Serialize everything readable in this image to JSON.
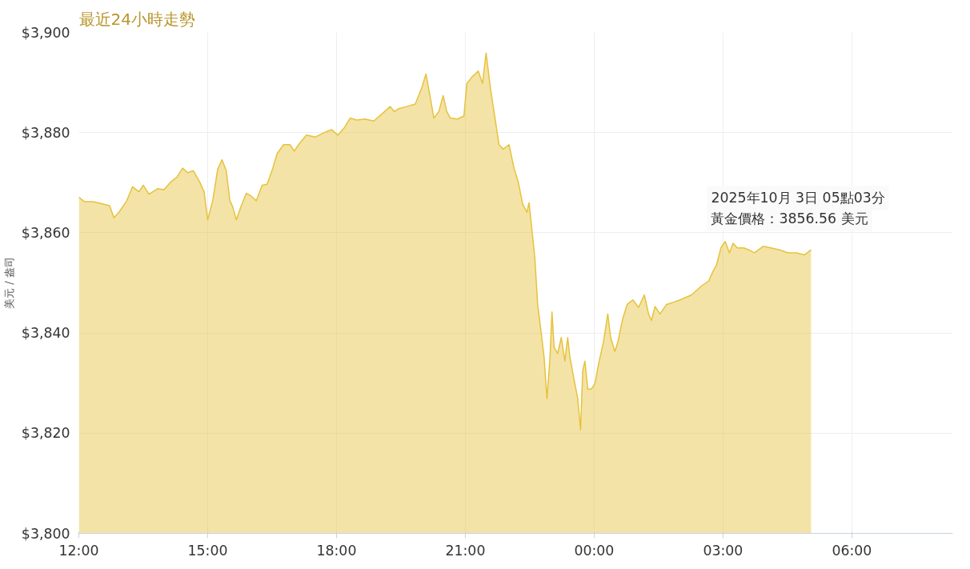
{
  "chart_data": {
    "type": "area",
    "title": "最近24小時走勢",
    "ylabel": "美元 / 盎司",
    "x": [
      "2025-10-02T12:00",
      "2025-10-02T12:08",
      "2025-10-02T12:20",
      "2025-10-02T12:32",
      "2025-10-02T12:43",
      "2025-10-02T12:49",
      "2025-10-02T12:56",
      "2025-10-02T13:07",
      "2025-10-02T13:15",
      "2025-10-02T13:24",
      "2025-10-02T13:30",
      "2025-10-02T13:38",
      "2025-10-02T13:50",
      "2025-10-02T13:59",
      "2025-10-02T14:08",
      "2025-10-02T14:17",
      "2025-10-02T14:25",
      "2025-10-02T14:32",
      "2025-10-02T14:40",
      "2025-10-02T14:49",
      "2025-10-02T14:55",
      "2025-10-02T15:00",
      "2025-10-02T15:07",
      "2025-10-02T15:14",
      "2025-10-02T15:20",
      "2025-10-02T15:26",
      "2025-10-02T15:31",
      "2025-10-02T15:35",
      "2025-10-02T15:40",
      "2025-10-02T15:47",
      "2025-10-02T15:54",
      "2025-10-02T16:01",
      "2025-10-02T16:08",
      "2025-10-02T16:16",
      "2025-10-02T16:23",
      "2025-10-02T16:31",
      "2025-10-02T16:37",
      "2025-10-02T16:46",
      "2025-10-02T16:55",
      "2025-10-02T17:01",
      "2025-10-02T17:07",
      "2025-10-02T17:18",
      "2025-10-02T17:30",
      "2025-10-02T17:41",
      "2025-10-02T17:53",
      "2025-10-02T18:02",
      "2025-10-02T18:11",
      "2025-10-02T18:19",
      "2025-10-02T18:28",
      "2025-10-02T18:40",
      "2025-10-02T18:52",
      "2025-10-02T19:04",
      "2025-10-02T19:15",
      "2025-10-02T19:21",
      "2025-10-02T19:27",
      "2025-10-02T19:38",
      "2025-10-02T19:50",
      "2025-10-02T19:59",
      "2025-10-02T20:05",
      "2025-10-02T20:11",
      "2025-10-02T20:16",
      "2025-10-02T20:23",
      "2025-10-02T20:29",
      "2025-10-02T20:34",
      "2025-10-02T20:39",
      "2025-10-02T20:49",
      "2025-10-02T20:58",
      "2025-10-02T21:02",
      "2025-10-02T21:10",
      "2025-10-02T21:18",
      "2025-10-02T21:24",
      "2025-10-02T21:29",
      "2025-10-02T21:35",
      "2025-10-02T21:41",
      "2025-10-02T21:47",
      "2025-10-02T21:53",
      "2025-10-02T22:01",
      "2025-10-02T22:08",
      "2025-10-02T22:14",
      "2025-10-02T22:20",
      "2025-10-02T22:26",
      "2025-10-02T22:29",
      "2025-10-02T22:37",
      "2025-10-02T22:41",
      "2025-10-02T22:46",
      "2025-10-02T22:50",
      "2025-10-02T22:54",
      "2025-10-02T22:58",
      "2025-10-02T23:01",
      "2025-10-02T23:04",
      "2025-10-02T23:09",
      "2025-10-02T23:14",
      "2025-10-02T23:19",
      "2025-10-02T23:23",
      "2025-10-02T23:26",
      "2025-10-02T23:32",
      "2025-10-02T23:37",
      "2025-10-02T23:41",
      "2025-10-02T23:44",
      "2025-10-02T23:47",
      "2025-10-02T23:51",
      "2025-10-02T23:56",
      "2025-10-03T00:01",
      "2025-10-03T00:07",
      "2025-10-03T00:13",
      "2025-10-03T00:19",
      "2025-10-03T00:23",
      "2025-10-03T00:29",
      "2025-10-03T00:33",
      "2025-10-03T00:40",
      "2025-10-03T00:46",
      "2025-10-03T00:54",
      "2025-10-03T01:02",
      "2025-10-03T01:10",
      "2025-10-03T01:16",
      "2025-10-03T01:20",
      "2025-10-03T01:25",
      "2025-10-03T01:32",
      "2025-10-03T01:41",
      "2025-10-03T01:50",
      "2025-10-03T02:00",
      "2025-10-03T02:16",
      "2025-10-03T02:30",
      "2025-10-03T02:40",
      "2025-10-03T02:46",
      "2025-10-03T02:51",
      "2025-10-03T02:57",
      "2025-10-03T03:03",
      "2025-10-03T03:09",
      "2025-10-03T03:14",
      "2025-10-03T03:20",
      "2025-10-03T03:29",
      "2025-10-03T03:36",
      "2025-10-03T03:44",
      "2025-10-03T03:56",
      "2025-10-03T04:07",
      "2025-10-03T04:19",
      "2025-10-03T04:31",
      "2025-10-03T04:43",
      "2025-10-03T04:54",
      "2025-10-03T05:03"
    ],
    "series": [
      {
        "color": "#e6c23c",
        "values": [
          3867.1,
          3866.2,
          3866.2,
          3865.8,
          3865.4,
          3863.0,
          3864.1,
          3866.4,
          3869.2,
          3868.2,
          3869.5,
          3867.7,
          3868.8,
          3868.6,
          3870.1,
          3871.1,
          3872.9,
          3872.0,
          3872.4,
          3870.1,
          3868.2,
          3862.6,
          3866.4,
          3872.7,
          3874.6,
          3872.4,
          3866.4,
          3865.2,
          3862.6,
          3865.4,
          3867.9,
          3867.3,
          3866.4,
          3869.5,
          3869.7,
          3872.9,
          3875.8,
          3877.6,
          3877.6,
          3876.3,
          3877.6,
          3879.5,
          3879.1,
          3879.9,
          3880.6,
          3879.5,
          3881.0,
          3882.9,
          3882.5,
          3882.7,
          3882.3,
          3883.8,
          3885.2,
          3884.2,
          3884.8,
          3885.2,
          3885.7,
          3888.9,
          3891.7,
          3887.0,
          3882.9,
          3884.2,
          3887.4,
          3884.2,
          3882.9,
          3882.7,
          3883.3,
          3889.8,
          3891.2,
          3892.3,
          3889.8,
          3895.9,
          3888.9,
          3883.3,
          3877.6,
          3876.7,
          3877.6,
          3872.9,
          3870.1,
          3865.8,
          3864.1,
          3866.0,
          3855.1,
          3845.7,
          3840.0,
          3835.2,
          3826.9,
          3834.4,
          3844.2,
          3837.2,
          3835.9,
          3839.1,
          3834.4,
          3839.1,
          3835.3,
          3830.6,
          3826.9,
          3820.7,
          3832.5,
          3834.4,
          3828.8,
          3828.8,
          3829.9,
          3834.4,
          3838.2,
          3843.8,
          3839.1,
          3836.3,
          3838.2,
          3842.9,
          3845.7,
          3846.6,
          3845.1,
          3847.6,
          3843.8,
          3842.5,
          3845.3,
          3843.8,
          3845.7,
          3846.1,
          3846.6,
          3847.6,
          3849.4,
          3850.4,
          3852.3,
          3853.6,
          3857.0,
          3858.3,
          3856.0,
          3857.9,
          3857.0,
          3857.0,
          3856.6,
          3856.0,
          3857.3,
          3857.0,
          3856.6,
          3856.0,
          3856.0,
          3855.6,
          3856.6
        ]
      }
    ],
    "xlim": [
      "2025-10-02T12:00",
      "2025-10-03T08:21"
    ],
    "xticks": [
      {
        "value": "2025-10-02T12:00",
        "label": "12:00"
      },
      {
        "value": "2025-10-02T15:00",
        "label": "15:00"
      },
      {
        "value": "2025-10-02T18:00",
        "label": "18:00"
      },
      {
        "value": "2025-10-02T21:00",
        "label": "21:00"
      },
      {
        "value": "2025-10-03T00:00",
        "label": "00:00"
      },
      {
        "value": "2025-10-03T03:00",
        "label": "03:00"
      },
      {
        "value": "2025-10-03T06:00",
        "label": "06:00"
      }
    ],
    "ylim": [
      3800,
      3900
    ],
    "yticks": [
      {
        "value": 3800,
        "label": "$3,800"
      },
      {
        "value": 3820,
        "label": "$3,820"
      },
      {
        "value": 3840,
        "label": "$3,840"
      },
      {
        "value": 3860,
        "label": "$3,860"
      },
      {
        "value": 3880,
        "label": "$3,880"
      },
      {
        "value": 3900,
        "label": "$3,900"
      }
    ],
    "grid": true,
    "marker": "none",
    "line_style": "solid",
    "annotations": [
      "2025年10月 3日 05點03分",
      {
        "text": "黃金價格：3856.56 美元",
        "x": "2025-10-03T05:03",
        "y": 3856.56
      }
    ]
  }
}
